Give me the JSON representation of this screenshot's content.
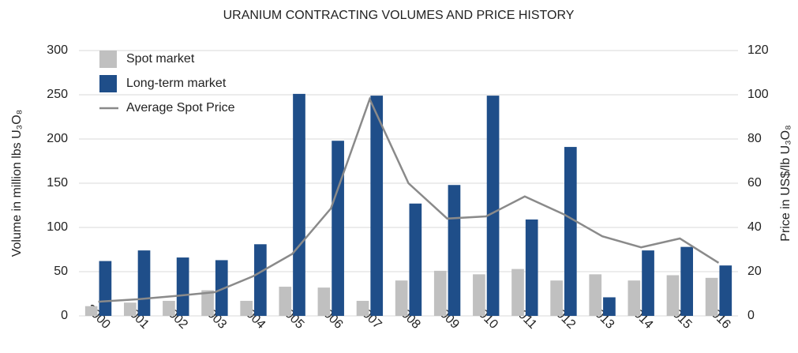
{
  "chart_data": {
    "type": "bar",
    "title": "URANIUM CONTRACTING VOLUMES AND PRICE HISTORY",
    "y_label": "Volume in million lbs U₃O₈",
    "y2_label": "Price in US$/lb U₃O₈",
    "categories": [
      "2000",
      "2001",
      "2002",
      "2003",
      "2004",
      "2005",
      "2006",
      "2007",
      "2008",
      "2009",
      "2010",
      "2011",
      "2012",
      "2013",
      "2014",
      "2015",
      "2016"
    ],
    "series": [
      {
        "name": "Spot market",
        "type": "bar",
        "color": "#c0c0c0",
        "values": [
          11,
          15,
          17,
          29,
          17,
          33,
          32,
          17,
          40,
          51,
          47,
          53,
          40,
          47,
          40,
          46,
          43
        ]
      },
      {
        "name": "Long-term market",
        "type": "bar",
        "color": "#1f4e89",
        "values": [
          62,
          74,
          66,
          63,
          81,
          251,
          198,
          249,
          127,
          148,
          249,
          109,
          191,
          21,
          74,
          78,
          57
        ]
      },
      {
        "name": "Average Spot Price",
        "type": "line",
        "axis": "y2",
        "color": "#8a8a8a",
        "values": [
          6.4,
          7.5,
          9,
          10.7,
          18,
          28,
          48.6,
          98,
          60,
          44,
          45,
          54,
          46,
          36,
          31,
          35,
          24
        ]
      }
    ],
    "ylim": [
      0,
      300
    ],
    "yticks": [
      0,
      50,
      100,
      150,
      200,
      250,
      300
    ],
    "y2lim": [
      0,
      120
    ],
    "y2ticks": [
      0,
      20,
      40,
      60,
      80,
      100,
      120
    ],
    "grid": true,
    "legend": "top-left"
  }
}
